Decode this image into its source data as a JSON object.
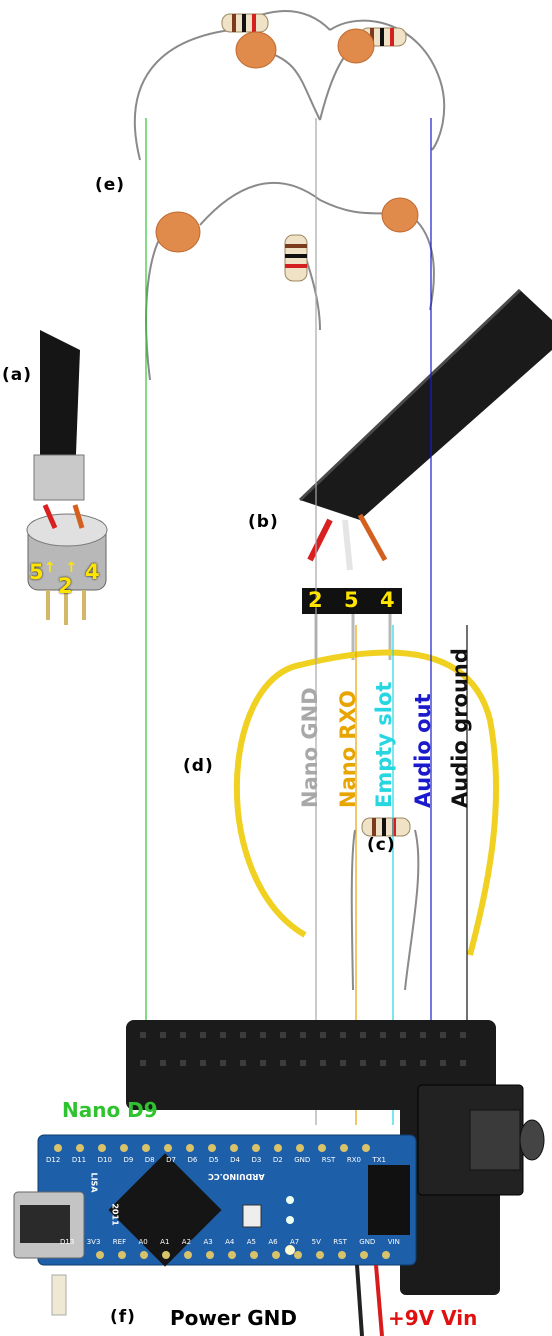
{
  "labels": {
    "a": "(a)",
    "b": "(b)",
    "c": "(c)",
    "d": "(d)",
    "e": "(e)",
    "f": "(f)"
  },
  "connector_pins": [
    "5",
    "2",
    "4"
  ],
  "header_pins": [
    "2",
    "5",
    "4"
  ],
  "signals": {
    "nano_gnd": "Nano GND",
    "nano_rxo": "Nano RXO",
    "empty_slot": "Empty slot",
    "audio_out": "Audio out",
    "audio_ground": "Audio ground",
    "nano_d9": "Nano D9",
    "power_gnd": "Power GND",
    "vin": "+9V Vin"
  },
  "board_text": {
    "brand": "ARDUINO.CC",
    "year": "2011",
    "model": "LISA",
    "top_pins": [
      "D12",
      "D11",
      "D10",
      "D9",
      "D8",
      "D7",
      "D6",
      "D5",
      "D4",
      "D3",
      "D2",
      "GND",
      "RST",
      "RX0",
      "TX1"
    ],
    "bottom_pins": [
      "D13",
      "3V3",
      "REF",
      "A0",
      "A1",
      "A2",
      "A3",
      "A4",
      "A5",
      "A6",
      "A7",
      "5V",
      "RST",
      "GND",
      "VIN"
    ]
  },
  "colors": {
    "gnd_wire": "#a8a8a8",
    "rxo_wire": "#e8a400",
    "empty_wire": "#26d6e0",
    "audio_out_wire": "#1a1acc",
    "audio_ground_wire": "#111111",
    "d9_wire": "#2fc42f",
    "vin_text": "#e01010",
    "pin_yellow": "#ffe400"
  }
}
